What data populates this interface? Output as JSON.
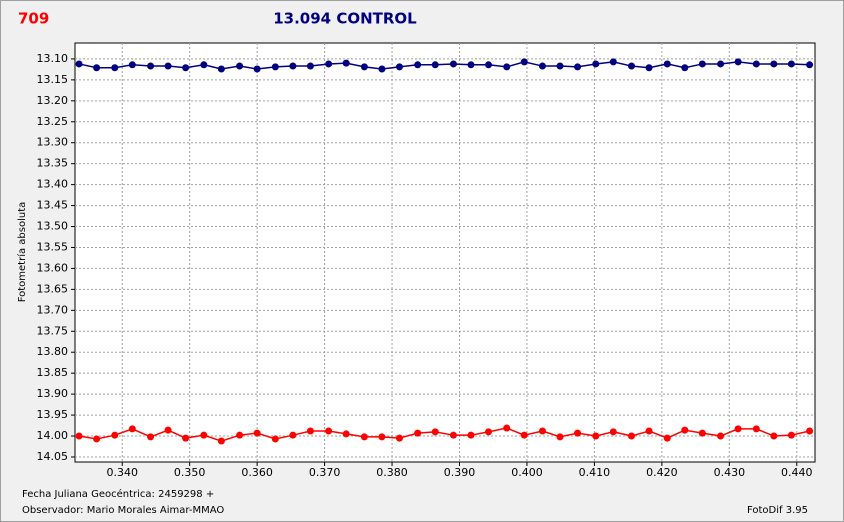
{
  "chart_data": {
    "type": "line",
    "label": "709",
    "title": "13.094 CONTROL",
    "ylabel": "Fotometría absoluta",
    "xlabel": "Fecha Juliana Geocéntrica: 2459298 +",
    "observer": "Observador: Mario Morales Aimar-MMAO",
    "software": "FotoDif 3.95",
    "x": [
      0.3336,
      0.3362,
      0.3389,
      0.3415,
      0.3442,
      0.3468,
      0.3494,
      0.3521,
      0.3547,
      0.3574,
      0.36,
      0.3627,
      0.3653,
      0.3679,
      0.3706,
      0.3732,
      0.3759,
      0.3785,
      0.3811,
      0.3838,
      0.3864,
      0.3891,
      0.3917,
      0.3943,
      0.397,
      0.3996,
      0.4023,
      0.4049,
      0.4075,
      0.4102,
      0.4128,
      0.4155,
      0.4181,
      0.4208,
      0.4234,
      0.426,
      0.4287,
      0.4313,
      0.434,
      0.4366,
      0.4392,
      0.4419
    ],
    "series": [
      {
        "color": "#000080",
        "values": [
          13.112,
          13.121,
          13.121,
          13.114,
          13.117,
          13.117,
          13.121,
          13.114,
          13.124,
          13.117,
          13.124,
          13.119,
          13.117,
          13.117,
          13.112,
          13.11,
          13.119,
          13.124,
          13.119,
          13.114,
          13.114,
          13.112,
          13.114,
          13.114,
          13.119,
          13.107,
          13.117,
          13.117,
          13.119,
          13.112,
          13.107,
          13.117,
          13.121,
          13.112,
          13.121,
          13.112,
          13.112,
          13.107,
          13.112,
          13.112,
          13.112,
          13.114
        ]
      },
      {
        "color": "#ff0000",
        "values": [
          14.0,
          14.007,
          13.998,
          13.983,
          14.002,
          13.986,
          14.005,
          13.998,
          14.012,
          13.998,
          13.993,
          14.007,
          13.998,
          13.988,
          13.988,
          13.995,
          14.002,
          14.002,
          14.005,
          13.993,
          13.99,
          13.998,
          13.998,
          13.99,
          13.981,
          13.998,
          13.988,
          14.002,
          13.993,
          14.0,
          13.99,
          14.0,
          13.988,
          14.005,
          13.986,
          13.993,
          14.0,
          13.983,
          13.983,
          14.0,
          13.998,
          13.988
        ]
      }
    ],
    "xlim": [
      0.333,
      0.4427
    ],
    "ylim": [
      13.062,
      14.062
    ],
    "y_reversed": true,
    "grid": true,
    "xticks": [
      {
        "value": 0.34,
        "label": "0.340"
      },
      {
        "value": 0.35,
        "label": "0.350"
      },
      {
        "value": 0.36,
        "label": "0.360"
      },
      {
        "value": 0.37,
        "label": "0.370"
      },
      {
        "value": 0.38,
        "label": "0.380"
      },
      {
        "value": 0.39,
        "label": "0.390"
      },
      {
        "value": 0.4,
        "label": "0.400"
      },
      {
        "value": 0.41,
        "label": "0.410"
      },
      {
        "value": 0.42,
        "label": "0.420"
      },
      {
        "value": 0.43,
        "label": "0.430"
      },
      {
        "value": 0.44,
        "label": "0.440"
      }
    ],
    "yticks": [
      {
        "value": 13.1,
        "label": "13.10"
      },
      13.15,
      {
        "value": 13.2,
        "label": "13.20"
      },
      13.25,
      {
        "value": 13.3,
        "label": "13.30"
      },
      13.35,
      {
        "value": 13.4,
        "label": "13.40"
      },
      13.45,
      {
        "value": 13.5,
        "label": "13.50"
      },
      13.55,
      {
        "value": 13.6,
        "label": "13.60"
      },
      13.65,
      {
        "value": 13.7,
        "label": "13.70"
      },
      13.75,
      {
        "value": 13.8,
        "label": "13.80"
      },
      13.85,
      {
        "value": 13.9,
        "label": "13.90"
      },
      13.95,
      {
        "value": 14.0,
        "label": "14.00"
      },
      14.05
    ]
  }
}
